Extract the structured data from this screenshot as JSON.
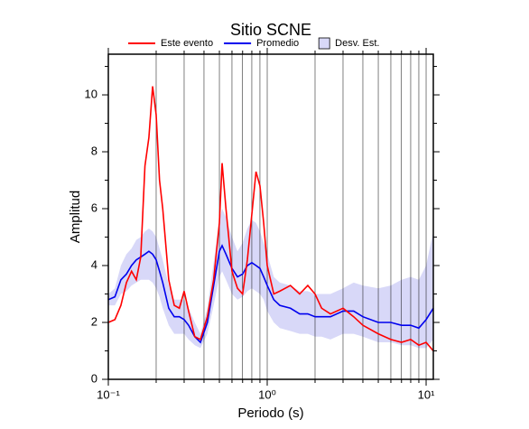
{
  "chart_data": {
    "type": "line",
    "title": "Sitio SCNE",
    "x_label": "Periodo (s)",
    "y_label": "Amplitud",
    "xscale": "log",
    "grid": true,
    "xlim": [
      0.1,
      11.1
    ],
    "ylim": [
      0,
      11.43
    ],
    "xticks": [
      {
        "value": 0.1,
        "label": "10⁻¹"
      },
      {
        "value": 1,
        "label": "10⁰"
      },
      {
        "value": 10,
        "label": "10¹"
      }
    ],
    "xminorticks": [
      0.2,
      0.3,
      0.4,
      0.5,
      0.6,
      0.7,
      0.8,
      0.9,
      2,
      3,
      4,
      5,
      6,
      7,
      8,
      9
    ],
    "yticks": [
      0,
      2,
      4,
      6,
      8,
      10
    ],
    "yminorticks": [
      1,
      3,
      5,
      7,
      9,
      11
    ],
    "x": [
      0.1,
      0.11,
      0.12,
      0.13,
      0.14,
      0.15,
      0.16,
      0.17,
      0.18,
      0.19,
      0.2,
      0.21,
      0.22,
      0.24,
      0.26,
      0.28,
      0.3,
      0.32,
      0.35,
      0.38,
      0.42,
      0.46,
      0.5,
      0.52,
      0.55,
      0.6,
      0.65,
      0.7,
      0.75,
      0.8,
      0.85,
      0.9,
      0.95,
      1.0,
      1.1,
      1.2,
      1.4,
      1.6,
      1.8,
      2.0,
      2.2,
      2.5,
      3.0,
      3.5,
      4,
      5,
      6,
      7,
      8,
      9,
      10,
      11.1
    ],
    "band": {
      "name": "Desv. Est.",
      "color": "#d8d8f8",
      "lower": [
        2.6,
        2.6,
        3.0,
        3.1,
        3.3,
        3.4,
        3.5,
        3.5,
        3.5,
        3.4,
        3.2,
        2.9,
        2.5,
        1.9,
        1.6,
        1.6,
        1.6,
        1.4,
        1.2,
        1.1,
        1.6,
        2.6,
        3.6,
        3.8,
        3.5,
        3.0,
        2.8,
        2.9,
        3.1,
        3.2,
        3.1,
        3.0,
        2.8,
        2.4,
        2.0,
        1.8,
        1.7,
        1.6,
        1.6,
        1.5,
        1.5,
        1.4,
        1.6,
        1.6,
        1.5,
        1.3,
        1.3,
        1.2,
        1.2,
        1.1,
        1.1,
        1.4
      ],
      "upper": [
        3.0,
        3.2,
        4.0,
        4.4,
        4.6,
        4.9,
        5.0,
        5.2,
        5.3,
        5.2,
        5.0,
        4.6,
        4.2,
        3.3,
        2.8,
        2.8,
        2.8,
        2.5,
        2.0,
        1.6,
        2.5,
        4.1,
        5.6,
        6.0,
        5.7,
        5.0,
        4.5,
        4.8,
        5.3,
        5.6,
        5.5,
        5.2,
        4.8,
        4.4,
        3.6,
        3.4,
        3.3,
        3.1,
        3.1,
        3.0,
        3.0,
        3.0,
        3.2,
        3.4,
        3.3,
        3.2,
        3.3,
        3.5,
        3.6,
        3.5,
        4.0,
        5.2
      ]
    },
    "series": [
      {
        "name": "Este evento",
        "color": "#ff0000",
        "values": [
          2.0,
          2.1,
          2.6,
          3.4,
          3.8,
          3.5,
          4.3,
          7.5,
          8.5,
          10.3,
          9.3,
          7.0,
          6.0,
          3.5,
          2.6,
          2.5,
          3.1,
          2.4,
          1.5,
          1.4,
          2.2,
          3.5,
          5.5,
          7.6,
          6.0,
          3.8,
          3.2,
          3.0,
          4.2,
          5.8,
          7.3,
          6.8,
          5.5,
          4.0,
          3.0,
          3.1,
          3.3,
          3.0,
          3.3,
          3.0,
          2.5,
          2.3,
          2.5,
          2.2,
          1.9,
          1.6,
          1.4,
          1.3,
          1.4,
          1.2,
          1.3,
          1.0
        ]
      },
      {
        "name": "Promedio",
        "color": "#0000ee",
        "values": [
          2.8,
          2.9,
          3.5,
          3.7,
          4.0,
          4.2,
          4.3,
          4.4,
          4.5,
          4.4,
          4.2,
          3.8,
          3.4,
          2.5,
          2.2,
          2.2,
          2.1,
          1.9,
          1.5,
          1.3,
          2.0,
          3.3,
          4.5,
          4.7,
          4.4,
          3.9,
          3.6,
          3.7,
          4.0,
          4.1,
          4.0,
          3.9,
          3.6,
          3.3,
          2.8,
          2.6,
          2.5,
          2.3,
          2.3,
          2.2,
          2.2,
          2.2,
          2.4,
          2.4,
          2.2,
          2.0,
          2.0,
          1.9,
          1.9,
          1.8,
          2.1,
          2.5
        ]
      }
    ]
  }
}
